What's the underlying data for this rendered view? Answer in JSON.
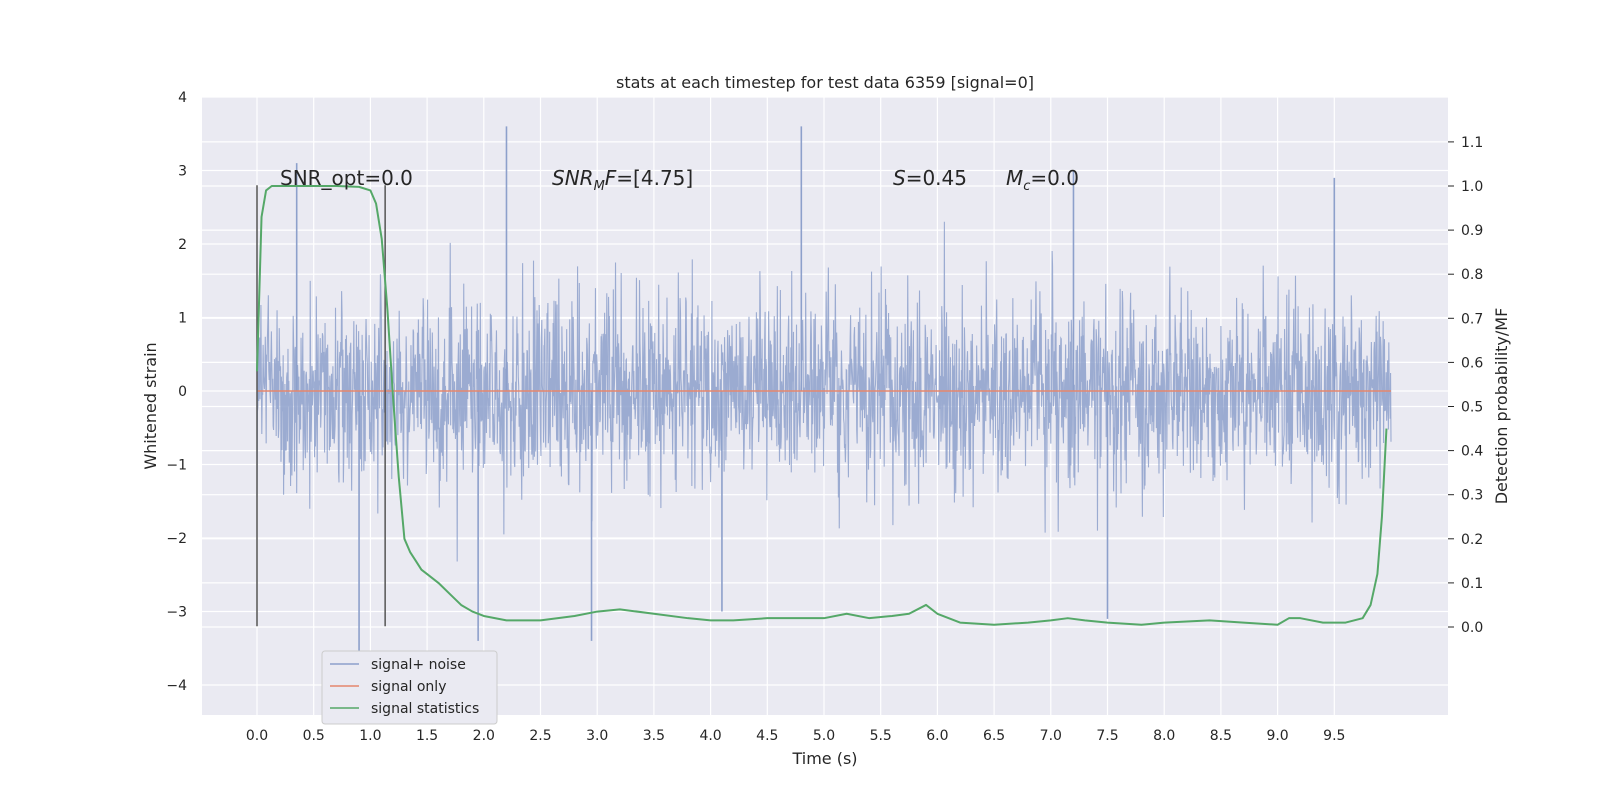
{
  "chart_data": {
    "type": "line",
    "title": "stats at each timestep for test data 6359 [signal=0]",
    "xlabel": "Time (s)",
    "ylabel_left": "Whitened strain",
    "ylabel_right": "Detection probability/MF",
    "xlim": [
      -0.5,
      10.5
    ],
    "ylim_left": [
      -4.4,
      4
    ],
    "ylim_right": [
      -0.2,
      1.2
    ],
    "grid": true,
    "x_ticks": [
      0.0,
      0.5,
      1.0,
      1.5,
      2.0,
      2.5,
      3.0,
      3.5,
      4.0,
      4.5,
      5.0,
      5.5,
      6.0,
      6.5,
      7.0,
      7.5,
      8.0,
      8.5,
      9.0,
      9.5
    ],
    "x_tick_labels": [
      "0.0",
      "0.5",
      "1.0",
      "1.5",
      "2.0",
      "2.5",
      "3.0",
      "3.5",
      "4.0",
      "4.5",
      "5.0",
      "5.5",
      "6.0",
      "6.5",
      "7.0",
      "7.5",
      "8.0",
      "8.5",
      "9.0",
      "9.5"
    ],
    "left_ticks": [
      -4,
      -3,
      -2,
      -1,
      0,
      1,
      2,
      3,
      4
    ],
    "left_tick_labels": [
      "−4",
      "−3",
      "−2",
      "−1",
      "0",
      "1",
      "2",
      "3",
      "4"
    ],
    "right_ticks": [
      0.0,
      0.1,
      0.2,
      0.3,
      0.4,
      0.5,
      0.6,
      0.7,
      0.8,
      0.9,
      1.0,
      1.1
    ],
    "right_tick_labels": [
      "0.0",
      "0.1",
      "0.2",
      "0.3",
      "0.4",
      "0.5",
      "0.6",
      "0.7",
      "0.8",
      "0.9",
      "1.0",
      "1.1"
    ],
    "series": [
      {
        "name": "signal+ noise",
        "axis": "left",
        "color": "#8da0cb",
        "x_range": [
          0.0,
          10.0
        ],
        "note_envelope": {
          "typical_range": [
            -1.3,
            1.3
          ],
          "peaks": [
            {
              "x": 0.35,
              "y": 3.1
            },
            {
              "x": 2.2,
              "y": 3.6
            },
            {
              "x": 4.8,
              "y": 3.6
            },
            {
              "x": 7.2,
              "y": 3.0
            },
            {
              "x": 9.5,
              "y": 2.9
            },
            {
              "x": 0.9,
              "y": -3.9
            },
            {
              "x": 1.95,
              "y": -3.4
            },
            {
              "x": 2.95,
              "y": -3.4
            },
            {
              "x": 4.1,
              "y": -3.0
            },
            {
              "x": 7.5,
              "y": -3.1
            }
          ]
        }
      },
      {
        "name": "signal only",
        "axis": "left",
        "color": "#e5866c",
        "x": [
          0.0,
          10.0
        ],
        "y": [
          0.0,
          0.0
        ]
      },
      {
        "name": "signal statistics",
        "axis": "right",
        "color": "#55a868",
        "x": [
          0.0,
          0.04,
          0.08,
          0.13,
          0.2,
          0.3,
          0.5,
          0.7,
          0.9,
          1.0,
          1.05,
          1.1,
          1.15,
          1.2,
          1.25,
          1.3,
          1.35,
          1.4,
          1.45,
          1.5,
          1.6,
          1.7,
          1.8,
          1.9,
          2.0,
          2.2,
          2.5,
          2.8,
          3.0,
          3.2,
          3.5,
          3.8,
          4.0,
          4.2,
          4.5,
          4.8,
          5.0,
          5.2,
          5.4,
          5.6,
          5.75,
          5.9,
          6.0,
          6.2,
          6.5,
          6.8,
          7.0,
          7.15,
          7.3,
          7.5,
          7.8,
          8.0,
          8.4,
          8.7,
          9.0,
          9.1,
          9.2,
          9.4,
          9.6,
          9.75,
          9.82,
          9.88,
          9.92,
          9.96
        ],
        "y": [
          0.58,
          0.93,
          0.99,
          1.0,
          1.0,
          1.0,
          1.0,
          1.0,
          0.998,
          0.99,
          0.96,
          0.88,
          0.72,
          0.52,
          0.34,
          0.2,
          0.17,
          0.15,
          0.13,
          0.12,
          0.1,
          0.075,
          0.05,
          0.035,
          0.025,
          0.015,
          0.015,
          0.025,
          0.035,
          0.04,
          0.03,
          0.02,
          0.015,
          0.015,
          0.02,
          0.02,
          0.02,
          0.03,
          0.02,
          0.025,
          0.03,
          0.05,
          0.03,
          0.01,
          0.005,
          0.01,
          0.015,
          0.02,
          0.015,
          0.01,
          0.005,
          0.01,
          0.015,
          0.01,
          0.005,
          0.02,
          0.02,
          0.01,
          0.01,
          0.02,
          0.05,
          0.12,
          0.25,
          0.45
        ]
      }
    ],
    "vlines": [
      {
        "x": 0.0,
        "y_range": [
          -3.2,
          2.8
        ],
        "color": "#555555"
      },
      {
        "x": 1.13,
        "y_range": [
          -3.2,
          2.8
        ],
        "color": "#555555"
      }
    ],
    "annotations": [
      {
        "text": "SNR_opt=0.0",
        "x": 0.2,
        "y": 2.85
      },
      {
        "text": "SNR_MF=[4.75]",
        "display": "SNR_{M}F=[4.75]",
        "x": 2.6,
        "y": 2.85
      },
      {
        "text": "S=0.45",
        "x": 5.6,
        "y": 2.85
      },
      {
        "text": "M_c=0.0",
        "x": 6.6,
        "y": 2.85
      }
    ],
    "legend": {
      "placement": "lower-left",
      "entries": [
        "signal+ noise",
        "signal only",
        "signal statistics"
      ]
    }
  }
}
